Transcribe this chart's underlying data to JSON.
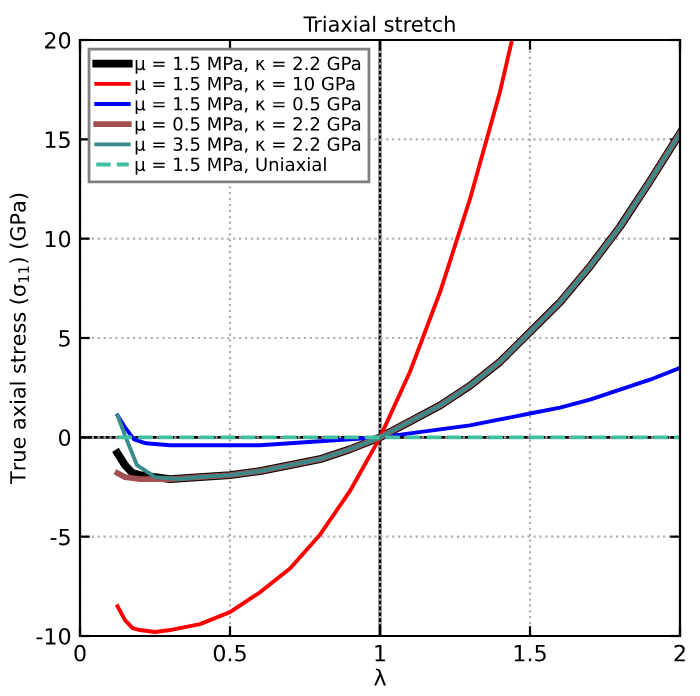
{
  "chart_data": {
    "type": "line",
    "title": "Triaxial stretch",
    "xlabel": "λ",
    "ylabel": "True axial stress (σ$_{11}$) (GPa)",
    "xlim": [
      0,
      2
    ],
    "ylim": [
      -10,
      20
    ],
    "xticks": [
      0,
      0.5,
      1,
      1.5,
      2
    ],
    "yticks": [
      -10,
      -5,
      0,
      5,
      10,
      15,
      20
    ],
    "grid": true,
    "legend": "top left",
    "line_style": "solid",
    "marker": "none",
    "ref_lines": [
      {
        "axis": "x",
        "value": 1,
        "color": "#000000"
      },
      {
        "axis": "y",
        "value": 0,
        "color": "#000000"
      }
    ],
    "series": [
      {
        "name": "μ = 1.5 MPa, κ = 2.2 GPa",
        "color": "#000000",
        "x": [
          0.125,
          0.15,
          0.175,
          0.2,
          0.3,
          0.4,
          0.5,
          0.6,
          0.7,
          0.8,
          0.9,
          1.0,
          1.1,
          1.2,
          1.3,
          1.4,
          1.5,
          1.6,
          1.7,
          1.8,
          1.9,
          2.0
        ],
        "values": [
          -0.8,
          -1.4,
          -1.8,
          -1.9,
          -2.1,
          -2.0,
          -1.9,
          -1.7,
          -1.4,
          -1.1,
          -0.6,
          0,
          0.8,
          1.6,
          2.6,
          3.8,
          5.3,
          6.8,
          8.6,
          10.6,
          12.9,
          15.3
        ]
      },
      {
        "name": "μ = 1.5 MPa, κ = 10 GPa",
        "color": "#ff0000",
        "x": [
          0.125,
          0.15,
          0.175,
          0.2,
          0.25,
          0.3,
          0.4,
          0.5,
          0.6,
          0.7,
          0.8,
          0.9,
          1.0,
          1.1,
          1.2,
          1.3,
          1.4,
          1.44
        ],
        "values": [
          -8.5,
          -9.2,
          -9.6,
          -9.7,
          -9.8,
          -9.7,
          -9.4,
          -8.8,
          -7.8,
          -6.6,
          -4.9,
          -2.7,
          0,
          3.3,
          7.3,
          12.0,
          17.4,
          20
        ]
      },
      {
        "name": "μ = 1.5 MPa, κ = 0.5 GPa",
        "color": "#0000ff",
        "x": [
          0.125,
          0.15,
          0.18,
          0.22,
          0.3,
          0.4,
          0.5,
          0.6,
          0.7,
          0.8,
          0.9,
          1.0,
          1.1,
          1.2,
          1.3,
          1.4,
          1.5,
          1.6,
          1.7,
          1.8,
          1.9,
          2.0
        ],
        "values": [
          1.1,
          0.5,
          -0.1,
          -0.3,
          -0.4,
          -0.4,
          -0.4,
          -0.4,
          -0.3,
          -0.2,
          -0.1,
          0,
          0.2,
          0.4,
          0.6,
          0.9,
          1.2,
          1.5,
          1.9,
          2.4,
          2.9,
          3.5
        ]
      },
      {
        "name": "μ = 0.5 MPa, κ = 2.2 GPa",
        "color": "#a05050",
        "x": [
          0.125,
          0.15,
          0.2,
          0.3,
          0.4,
          0.5,
          0.6,
          0.7,
          0.8,
          0.9,
          1.0,
          1.1,
          1.2,
          1.3,
          1.4,
          1.5,
          1.6,
          1.7,
          1.8,
          1.9,
          2.0
        ],
        "values": [
          -1.8,
          -2.0,
          -2.1,
          -2.1,
          -2.0,
          -1.9,
          -1.7,
          -1.4,
          -1.1,
          -0.6,
          0,
          0.8,
          1.6,
          2.6,
          3.8,
          5.3,
          6.8,
          8.6,
          10.6,
          12.9,
          15.3
        ]
      },
      {
        "name": "μ = 3.5 MPa, κ = 2.2 GPa",
        "color": "#3a8a8a",
        "x": [
          0.125,
          0.155,
          0.19,
          0.25,
          0.33,
          0.4,
          0.5,
          0.6,
          0.7,
          0.8,
          0.9,
          1.0,
          1.1,
          1.2,
          1.3,
          1.4,
          1.5,
          1.6,
          1.7,
          1.8,
          1.9,
          2.0
        ],
        "values": [
          1.1,
          -0.1,
          -1.4,
          -2.0,
          -2.1,
          -2.0,
          -1.9,
          -1.7,
          -1.4,
          -1.1,
          -0.6,
          0,
          0.8,
          1.6,
          2.6,
          3.8,
          5.3,
          6.8,
          8.6,
          10.6,
          12.9,
          15.3
        ]
      },
      {
        "name": "μ = 1.5 MPa, Uniaxial",
        "color": "#40c0a0",
        "line_style": "dashed",
        "x": [
          0.125,
          0.5,
          1.0,
          1.5,
          2.0
        ],
        "values": [
          0,
          0,
          0,
          0,
          0
        ]
      }
    ]
  }
}
